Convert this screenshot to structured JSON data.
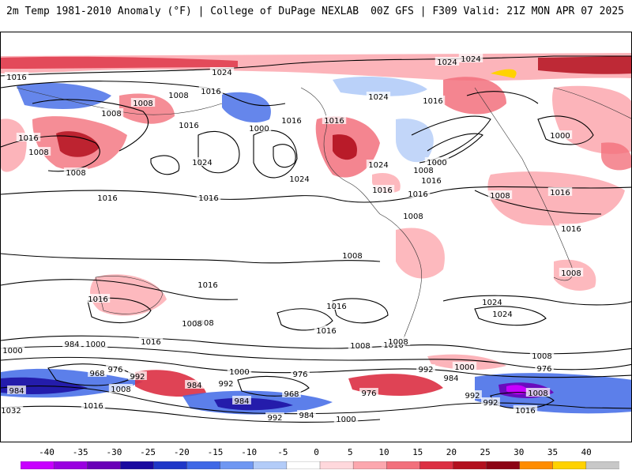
{
  "header": {
    "left_title": "2m Temp 1981-2010 Anomaly (°F) | College of DuPage NEXLAB",
    "right_title": "00Z GFS | F309 Valid: 21Z MON APR 07 2025"
  },
  "isobar_labels": [
    "1024",
    "1024",
    "1024",
    "1016",
    "1008",
    "1008",
    "1016",
    "1016",
    "1000",
    "1016",
    "1016",
    "1008",
    "1024",
    "1016",
    "1008",
    "1016",
    "1016",
    "1008",
    "1024",
    "1016",
    "1000",
    "1024",
    "1008",
    "1016",
    "1016",
    "1016",
    "1008",
    "1024",
    "1016",
    "1008",
    "1016",
    "1000",
    "1008",
    "1008",
    "1016",
    "1016",
    "1024",
    "1016",
    "1016",
    "1024",
    "1016",
    "1008",
    "1008",
    "1016",
    "1008",
    "1000",
    "984",
    "1000",
    "968",
    "976",
    "992",
    "984",
    "992",
    "1000",
    "976",
    "1008",
    "1008",
    "992",
    "1000",
    "976",
    "968",
    "1008",
    "992",
    "984",
    "1000",
    "984",
    "1016",
    "976",
    "992",
    "984",
    "1008",
    "1032",
    "984",
    "1016",
    "992"
  ],
  "colorbar": {
    "tick_labels": [
      "-40",
      "-35",
      "-30",
      "-25",
      "-20",
      "-15",
      "-10",
      "-5",
      "0",
      "5",
      "10",
      "15",
      "20",
      "25",
      "30",
      "35",
      "40"
    ],
    "colors": [
      "#c800ff",
      "#9a00e0",
      "#6a00b8",
      "#1a0aa0",
      "#1f37c8",
      "#3f68e6",
      "#6f97f2",
      "#b3ccf8",
      "#ffffff",
      "#ffd8dc",
      "#fca7ae",
      "#f2707c",
      "#dc2f42",
      "#b3101e",
      "#8c0414",
      "#ff8c00",
      "#ffd200",
      "#c8c8c8"
    ]
  }
}
